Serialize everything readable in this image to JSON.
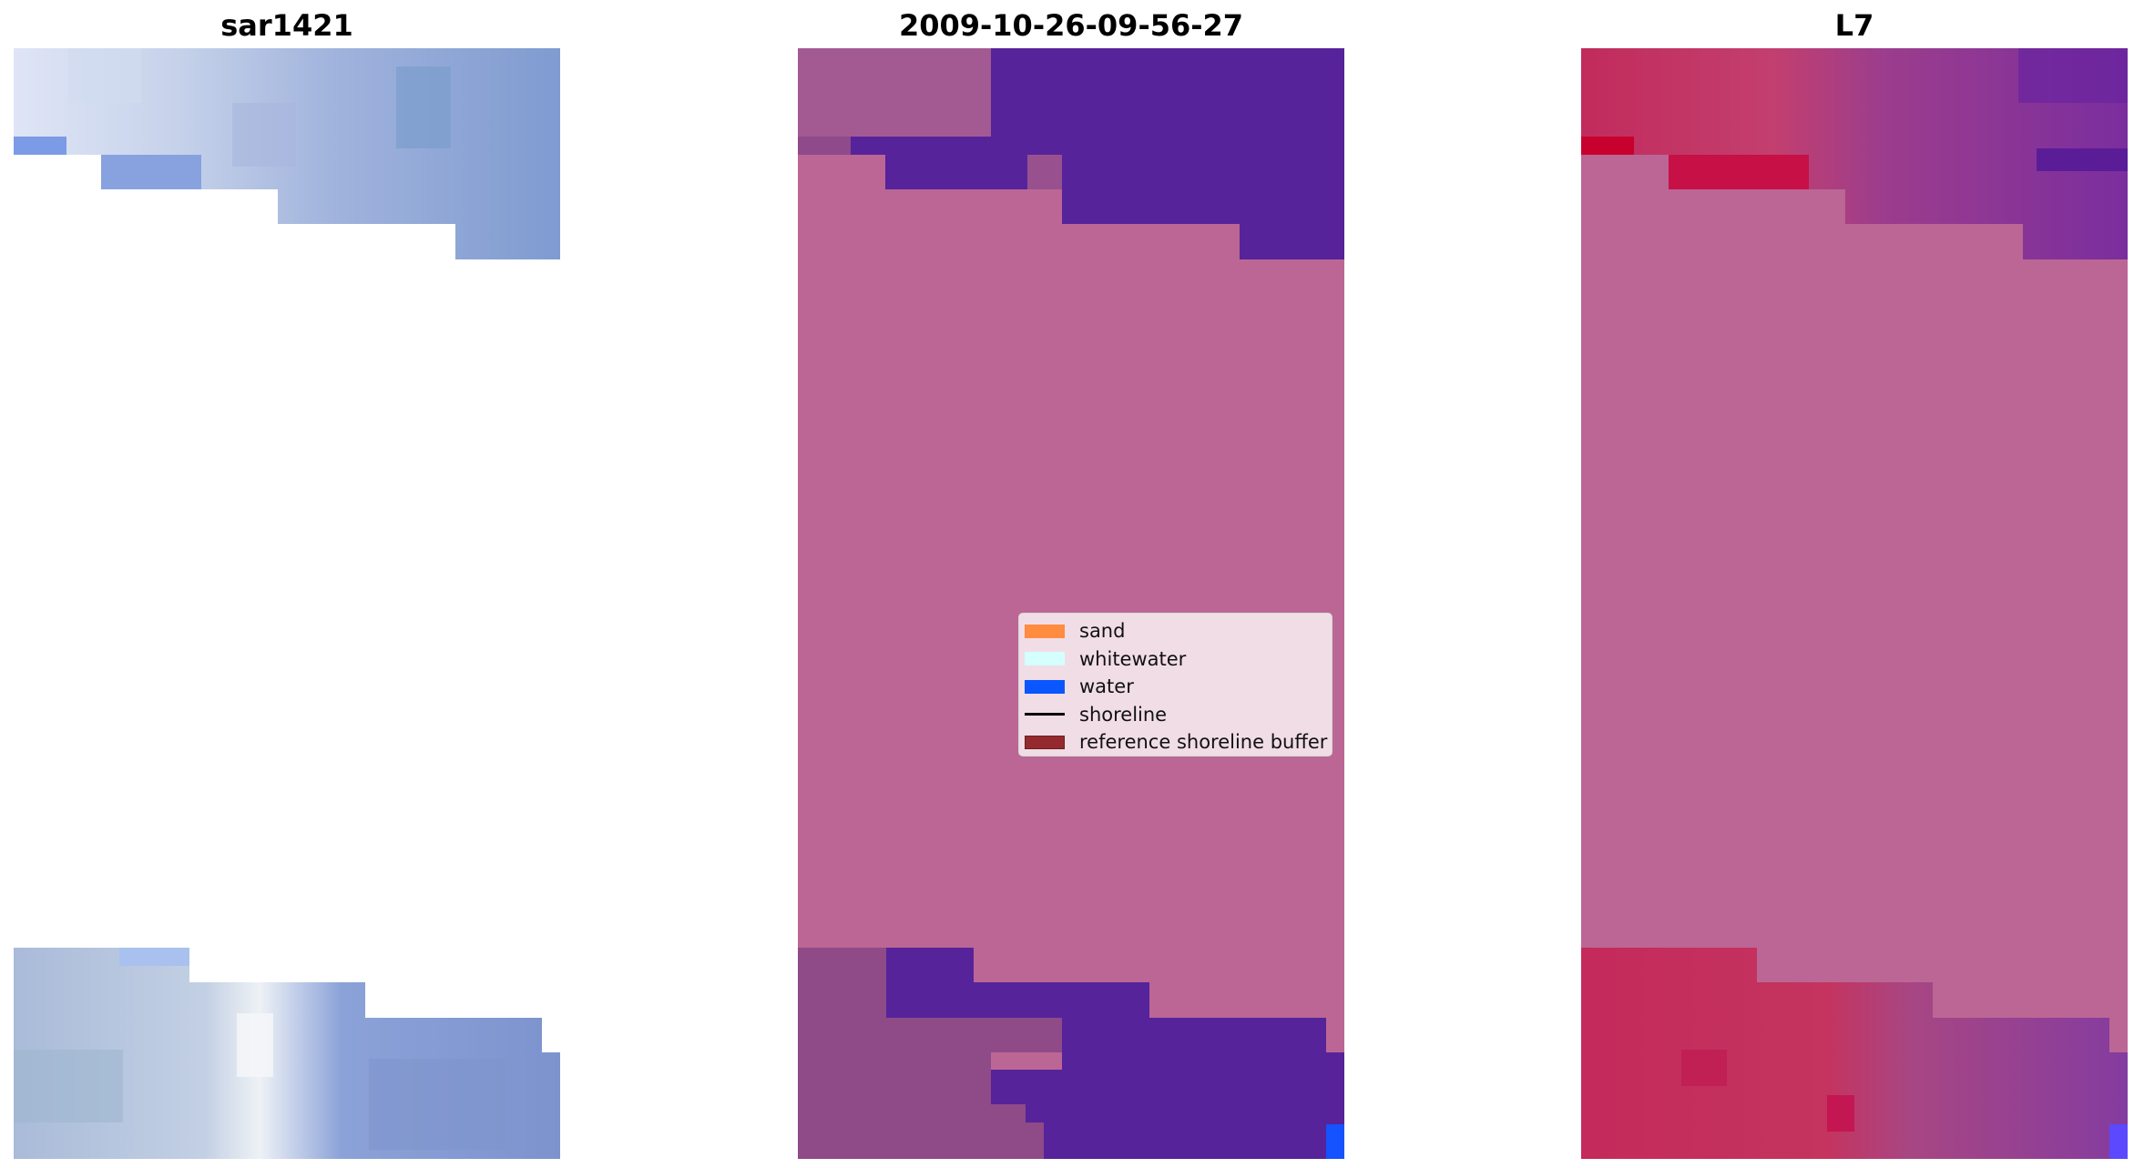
{
  "panels": [
    {
      "title": "sar1421"
    },
    {
      "title": "2009-10-26-09-56-27"
    },
    {
      "title": "L7"
    }
  ],
  "legend": {
    "items": [
      {
        "label": "sand",
        "kind": "patch",
        "color": "#ff8c3f"
      },
      {
        "label": "whitewater",
        "kind": "patch",
        "color": "#d4fffc"
      },
      {
        "label": "water",
        "kind": "patch",
        "color": "#0a56ff"
      },
      {
        "label": "shoreline",
        "kind": "line",
        "color": "#000000"
      },
      {
        "label": "reference shoreline buffer",
        "kind": "patch",
        "color": "#952a2e"
      }
    ]
  },
  "colors": {
    "background": "#ffffff",
    "overlay_land": "#bb6695",
    "overlay_water": "#56239a",
    "sar_light": "#dbe3f4",
    "sar_blue": "#7a99d4",
    "l7_red": "#c42d5d",
    "l7_purple": "#7a2fa0"
  }
}
